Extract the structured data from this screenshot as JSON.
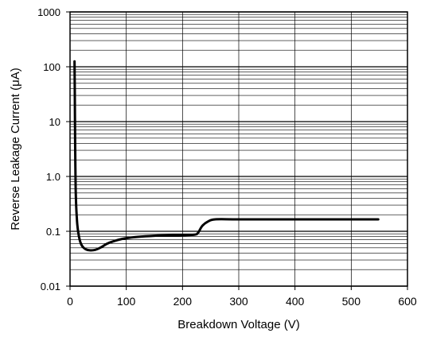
{
  "chart_data": {
    "type": "line",
    "title": "",
    "xlabel": "Breakdown Voltage (V)",
    "ylabel": "Reverse Leakage Current (μA)",
    "x_scale": "linear",
    "y_scale": "log",
    "xlim": [
      0,
      600
    ],
    "ylim": [
      0.01,
      1000
    ],
    "x_ticks": [
      0,
      100,
      200,
      300,
      400,
      500,
      600
    ],
    "x_tick_labels": [
      "0",
      "100",
      "200",
      "300",
      "400",
      "500",
      "600"
    ],
    "y_ticks": [
      0.01,
      0.1,
      1,
      10,
      100,
      1000
    ],
    "y_tick_labels": [
      "0.01",
      "0.1",
      "1.0",
      "10",
      "100",
      "1000"
    ],
    "grid": true,
    "legend": "none",
    "series": [
      {
        "color": "#000000",
        "x": [
          8,
          8.5,
          9,
          9.5,
          10,
          11,
          12,
          13,
          15,
          18,
          22,
          28,
          35,
          45,
          55,
          70,
          100,
          150,
          200,
          222,
          228,
          235,
          245,
          258,
          300,
          400,
          500,
          548
        ],
        "y": [
          125,
          30,
          5,
          1.5,
          0.6,
          0.28,
          0.18,
          0.13,
          0.09,
          0.065,
          0.053,
          0.047,
          0.045,
          0.046,
          0.051,
          0.062,
          0.075,
          0.083,
          0.085,
          0.087,
          0.095,
          0.125,
          0.15,
          0.165,
          0.165,
          0.165,
          0.165,
          0.165
        ]
      }
    ]
  }
}
